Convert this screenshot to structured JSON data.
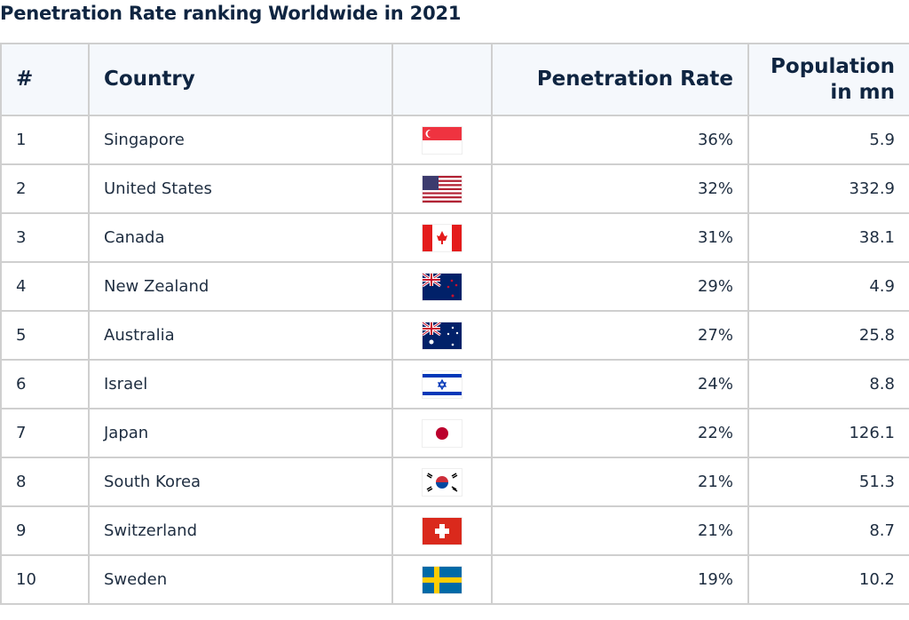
{
  "title": "Penetration Rate ranking Worldwide in 2021",
  "headers": {
    "rank": "#",
    "country": "Country",
    "flag": "",
    "rate": "Penetration Rate",
    "population": "Population in mn"
  },
  "rows": [
    {
      "rank": "1",
      "country": "Singapore",
      "flag": "singapore-flag",
      "rate": "36%",
      "population": "5.9"
    },
    {
      "rank": "2",
      "country": "United States",
      "flag": "united-states-flag",
      "rate": "32%",
      "population": "332.9"
    },
    {
      "rank": "3",
      "country": "Canada",
      "flag": "canada-flag",
      "rate": "31%",
      "population": "38.1"
    },
    {
      "rank": "4",
      "country": "New Zealand",
      "flag": "new-zealand-flag",
      "rate": "29%",
      "population": "4.9"
    },
    {
      "rank": "5",
      "country": "Australia",
      "flag": "australia-flag",
      "rate": "27%",
      "population": "25.8"
    },
    {
      "rank": "6",
      "country": "Israel",
      "flag": "israel-flag",
      "rate": "24%",
      "population": "8.8"
    },
    {
      "rank": "7",
      "country": "Japan",
      "flag": "japan-flag",
      "rate": "22%",
      "population": "126.1"
    },
    {
      "rank": "8",
      "country": "South Korea",
      "flag": "south-korea-flag",
      "rate": "21%",
      "population": "51.3"
    },
    {
      "rank": "9",
      "country": "Switzerland",
      "flag": "switzerland-flag",
      "rate": "21%",
      "population": "8.7"
    },
    {
      "rank": "10",
      "country": "Sweden",
      "flag": "sweden-flag",
      "rate": "19%",
      "population": "10.2"
    }
  ]
}
